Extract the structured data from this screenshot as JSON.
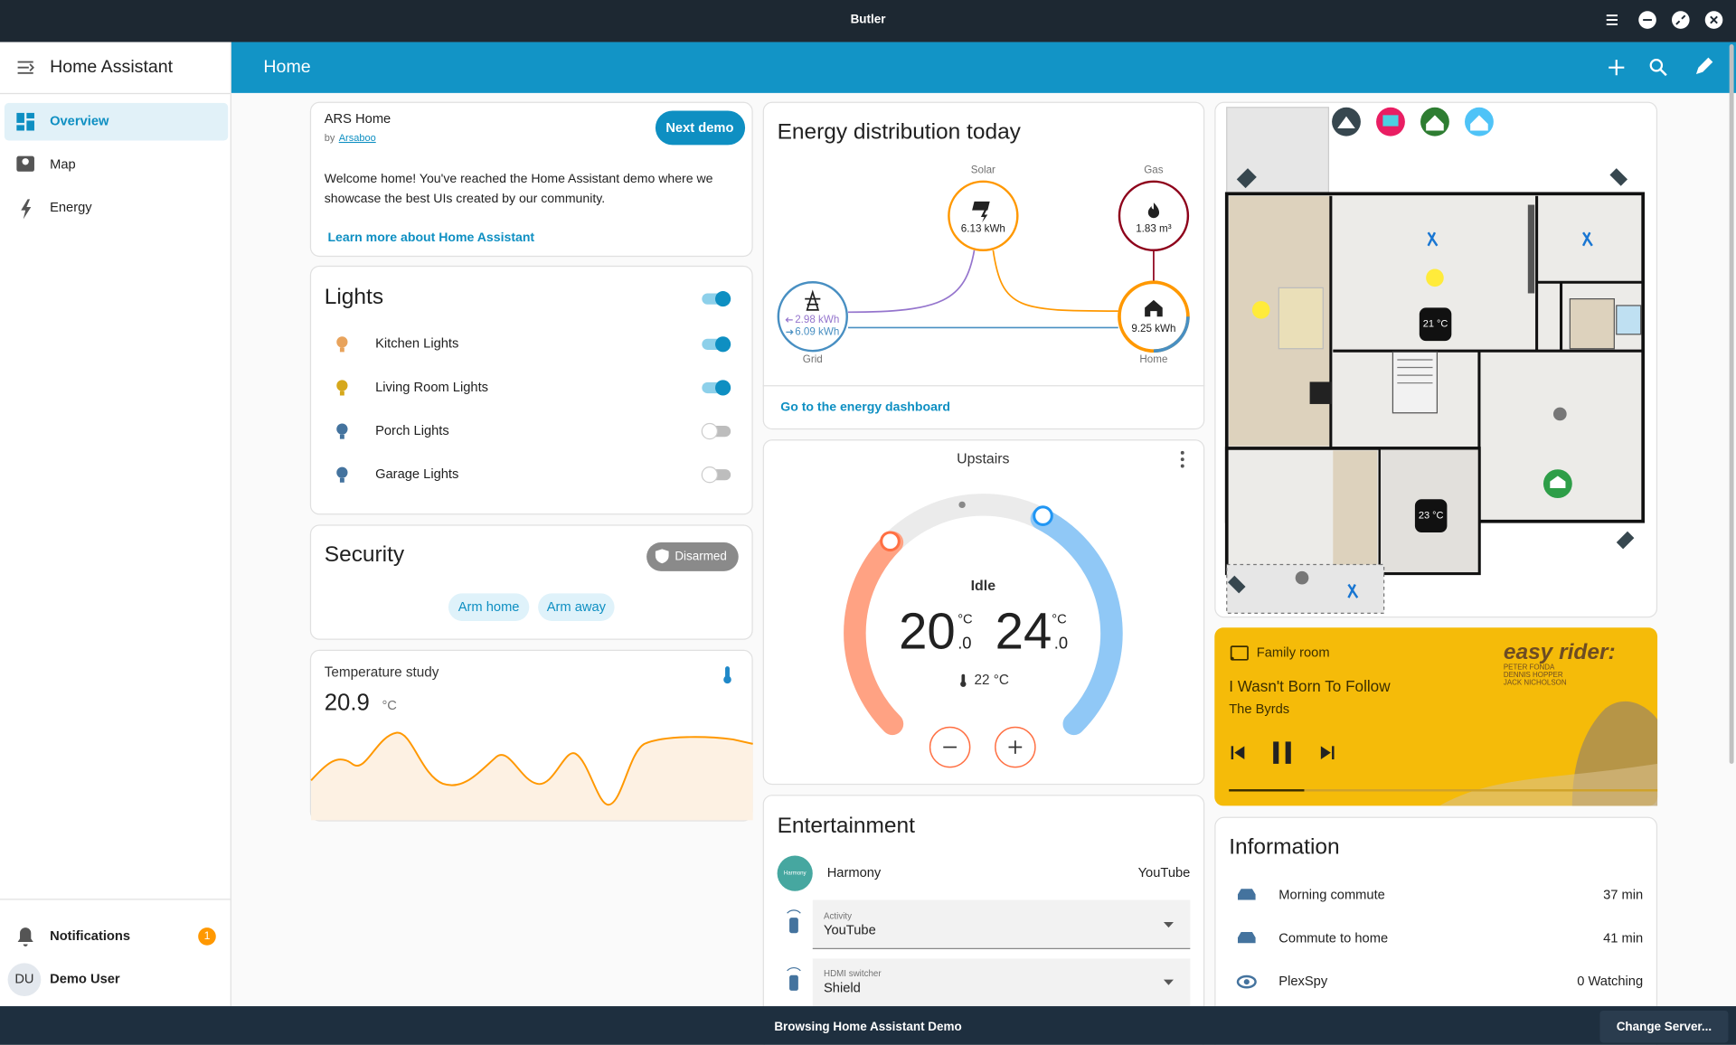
{
  "window": {
    "title": "Butler"
  },
  "sidebar": {
    "title": "Home Assistant",
    "items": [
      "Overview",
      "Map",
      "Energy"
    ],
    "notifications": "Notifications",
    "notification_count": "1",
    "user_initials": "DU",
    "user": "Demo User"
  },
  "header": {
    "title": "Home"
  },
  "intro": {
    "title": "ARS Home",
    "by": "by",
    "author": "Arsaboo",
    "button": "Next demo",
    "text": [
      "Welcome home! You've reached the Home Assistant demo where we",
      "showcase the best UIs created by our community."
    ],
    "link": "Learn more about Home Assistant"
  },
  "lights": {
    "title": "Lights",
    "master_on": true,
    "items": [
      {
        "name": "Kitchen Lights",
        "on": true,
        "color": "#e8a35c"
      },
      {
        "name": "Living Room Lights",
        "on": true,
        "color": "#d6a81c"
      },
      {
        "name": "Porch Lights",
        "on": false,
        "color": "#44739e"
      },
      {
        "name": "Garage Lights",
        "on": false,
        "color": "#44739e"
      }
    ]
  },
  "security": {
    "title": "Security",
    "state": "Disarmed",
    "actions": [
      "Arm home",
      "Arm away"
    ]
  },
  "temperature": {
    "title": "Temperature study",
    "value": "20.9",
    "unit": "°C"
  },
  "energy": {
    "title": "Energy distribution today",
    "solar": {
      "label": "Solar",
      "value": "6.13 kWh"
    },
    "gas": {
      "label": "Gas",
      "value": "1.83 m³"
    },
    "grid": {
      "label": "Grid",
      "in": "2.98 kWh",
      "out": "6.09 kWh"
    },
    "home": {
      "label": "Home",
      "value": "9.25 kWh"
    },
    "link": "Go to the energy dashboard"
  },
  "thermostat": {
    "name": "Upstairs",
    "state": "Idle",
    "low": "20",
    "high": "24",
    "decimal": ".0",
    "unit": "°C",
    "current": "22 °C"
  },
  "entertainment": {
    "title": "Entertainment",
    "device": "Harmony",
    "device_icon": "Harmony",
    "source": "YouTube",
    "activity_label": "Activity",
    "activity": "YouTube",
    "hdmi_label": "HDMI switcher",
    "hdmi": "Shield"
  },
  "floorplan": {
    "temperatures": [
      "21 °C",
      "23 °C"
    ]
  },
  "media": {
    "room": "Family room",
    "track": "I Wasn't Born To Follow",
    "artist": "The Byrds",
    "art_title": "easy rider:",
    "art_credits": [
      "PETER FONDA",
      "DENNIS HOPPER",
      "JACK NICHOLSON"
    ]
  },
  "information": {
    "title": "Information",
    "rows": [
      {
        "label": "Morning commute",
        "value": "37 min"
      },
      {
        "label": "Commute to home",
        "value": "41 min"
      },
      {
        "label": "PlexSpy",
        "value": "0 Watching"
      }
    ]
  },
  "footer": {
    "text": "Browsing Home Assistant Demo",
    "button": "Change Server..."
  }
}
